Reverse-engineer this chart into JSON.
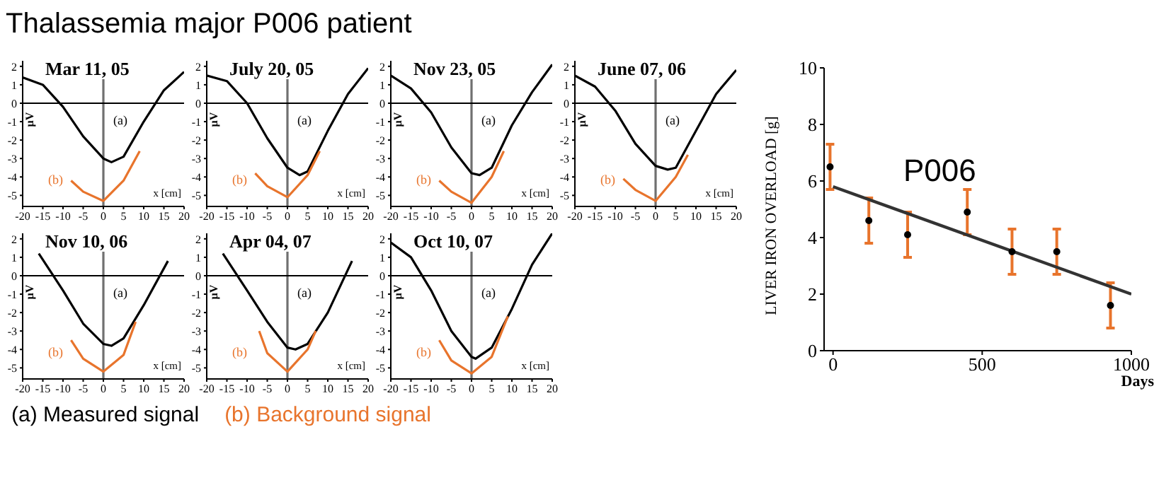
{
  "chart_data": [
    {
      "type": "line",
      "title": "Thalassemia major P006 patient",
      "subtitle": "Mar 11, 05",
      "xlabel": "x [cm]",
      "ylabel": "µV",
      "xlim": [
        -20,
        20
      ],
      "xticks": [
        -20,
        -15,
        -10,
        -5,
        0,
        5,
        10,
        15,
        20
      ],
      "ylim": [
        -5.6,
        2.3
      ],
      "yticks": [
        -5,
        -4,
        -3,
        -2,
        -1,
        0,
        1,
        2
      ],
      "ref_lines": [
        {
          "axis": "x",
          "value": 0
        },
        {
          "axis": "y",
          "value": 0
        }
      ],
      "annotations": [
        "(a)",
        "(b)",
        "(a) Measured signal",
        "(b) Background signal"
      ],
      "series": [
        {
          "color": "#000000",
          "x": [
            -20,
            -15,
            -10,
            -5,
            0,
            2,
            5,
            10,
            15,
            20
          ],
          "values": [
            1.4,
            1.0,
            -0.2,
            -1.8,
            -3.0,
            -3.2,
            -2.9,
            -1.0,
            0.7,
            1.7
          ]
        },
        {
          "color": "#e8742c",
          "x": [
            -8,
            -5,
            0,
            5,
            9
          ],
          "values": [
            -4.2,
            -4.8,
            -5.3,
            -4.2,
            -2.6
          ]
        }
      ]
    },
    {
      "type": "line",
      "subtitle": "July 20, 05",
      "xlabel": "x [cm]",
      "ylabel": "µV",
      "xlim": [
        -20,
        20
      ],
      "xticks": [
        -20,
        -15,
        -10,
        -5,
        0,
        5,
        10,
        15,
        20
      ],
      "ylim": [
        -5.6,
        2.3
      ],
      "yticks": [
        -5,
        -4,
        -3,
        -2,
        -1,
        0,
        1,
        2
      ],
      "ref_lines": [
        {
          "axis": "x",
          "value": 0
        },
        {
          "axis": "y",
          "value": 0
        }
      ],
      "annotations": [
        "(a)",
        "(b)"
      ],
      "series": [
        {
          "color": "#000000",
          "x": [
            -20,
            -15,
            -10,
            -5,
            0,
            3,
            5,
            10,
            15,
            20
          ],
          "values": [
            1.5,
            1.2,
            0,
            -1.9,
            -3.5,
            -3.9,
            -3.7,
            -1.5,
            0.5,
            1.9
          ]
        },
        {
          "color": "#e8742c",
          "x": [
            -8,
            -5,
            0,
            5,
            8
          ],
          "values": [
            -3.8,
            -4.5,
            -5.1,
            -3.9,
            -2.6
          ]
        }
      ]
    },
    {
      "type": "line",
      "subtitle": "Nov 23, 05",
      "xlabel": "x [cm]",
      "ylabel": "µV",
      "xlim": [
        -20,
        20
      ],
      "xticks": [
        -20,
        -15,
        -10,
        -5,
        0,
        5,
        10,
        15,
        20
      ],
      "ylim": [
        -5.6,
        2.3
      ],
      "yticks": [
        -5,
        -4,
        -3,
        -2,
        -1,
        0,
        1,
        2
      ],
      "ref_lines": [
        {
          "axis": "x",
          "value": 0
        },
        {
          "axis": "y",
          "value": 0
        }
      ],
      "annotations": [
        "(a)",
        "(b)"
      ],
      "series": [
        {
          "color": "#000000",
          "x": [
            -20,
            -15,
            -10,
            -5,
            0,
            2,
            5,
            10,
            15,
            20
          ],
          "values": [
            1.5,
            0.8,
            -0.5,
            -2.4,
            -3.8,
            -3.9,
            -3.5,
            -1.2,
            0.6,
            2.1
          ]
        },
        {
          "color": "#e8742c",
          "x": [
            -8,
            -5,
            0,
            5,
            8
          ],
          "values": [
            -4.2,
            -4.8,
            -5.4,
            -4.0,
            -2.6
          ]
        }
      ]
    },
    {
      "type": "line",
      "subtitle": "June 07, 06",
      "xlabel": "x [cm]",
      "ylabel": "µV",
      "xlim": [
        -20,
        20
      ],
      "xticks": [
        -20,
        -15,
        -10,
        -5,
        0,
        5,
        10,
        15,
        20
      ],
      "ylim": [
        -5.6,
        2.3
      ],
      "yticks": [
        -5,
        -4,
        -3,
        -2,
        -1,
        0,
        1,
        2
      ],
      "ref_lines": [
        {
          "axis": "x",
          "value": 0
        },
        {
          "axis": "y",
          "value": 0
        }
      ],
      "annotations": [
        "(a)",
        "(b)"
      ],
      "series": [
        {
          "color": "#000000",
          "x": [
            -20,
            -15,
            -10,
            -5,
            0,
            3,
            5,
            10,
            15,
            20
          ],
          "values": [
            1.5,
            0.9,
            -0.4,
            -2.2,
            -3.4,
            -3.6,
            -3.5,
            -1.5,
            0.5,
            1.8
          ]
        },
        {
          "color": "#e8742c",
          "x": [
            -8,
            -5,
            0,
            5,
            8
          ],
          "values": [
            -4.1,
            -4.7,
            -5.3,
            -4.0,
            -2.8
          ]
        }
      ]
    },
    {
      "type": "line",
      "subtitle": "Nov 10, 06",
      "xlabel": "x [cm]",
      "ylabel": "µV",
      "xlim": [
        -20,
        20
      ],
      "xticks": [
        -20,
        -15,
        -10,
        -5,
        0,
        5,
        10,
        15,
        20
      ],
      "ylim": [
        -5.6,
        2.3
      ],
      "yticks": [
        -5,
        -4,
        -3,
        -2,
        -1,
        0,
        1,
        2
      ],
      "ref_lines": [
        {
          "axis": "x",
          "value": 0
        },
        {
          "axis": "y",
          "value": 0
        }
      ],
      "annotations": [
        "(a)",
        "(b)"
      ],
      "series": [
        {
          "color": "#000000",
          "x": [
            -16,
            -10,
            -5,
            0,
            2,
            5,
            10,
            16
          ],
          "values": [
            1.2,
            -0.8,
            -2.6,
            -3.7,
            -3.8,
            -3.4,
            -1.6,
            0.8
          ]
        },
        {
          "color": "#e8742c",
          "x": [
            -8,
            -5,
            0,
            5,
            8
          ],
          "values": [
            -3.5,
            -4.5,
            -5.2,
            -4.3,
            -2.5
          ]
        }
      ]
    },
    {
      "type": "line",
      "subtitle": "Apr 04, 07",
      "xlabel": "x [cm]",
      "ylabel": "µV",
      "xlim": [
        -20,
        20
      ],
      "xticks": [
        -20,
        -15,
        -10,
        -5,
        0,
        5,
        10,
        15,
        20
      ],
      "ylim": [
        -5.6,
        2.3
      ],
      "yticks": [
        -5,
        -4,
        -3,
        -2,
        -1,
        0,
        1,
        2
      ],
      "ref_lines": [
        {
          "axis": "x",
          "value": 0
        },
        {
          "axis": "y",
          "value": 0
        }
      ],
      "annotations": [
        "(a)",
        "(b)"
      ],
      "series": [
        {
          "color": "#000000",
          "x": [
            -16,
            -10,
            -5,
            0,
            2,
            5,
            10,
            16
          ],
          "values": [
            1.2,
            -0.8,
            -2.5,
            -3.9,
            -4.0,
            -3.7,
            -2.0,
            0.8
          ]
        },
        {
          "color": "#e8742c",
          "x": [
            -7,
            -5,
            0,
            5,
            7
          ],
          "values": [
            -3.0,
            -4.2,
            -5.2,
            -4.0,
            -3.0
          ]
        }
      ]
    },
    {
      "type": "line",
      "subtitle": "Oct 10, 07",
      "xlabel": "x [cm]",
      "ylabel": "µV",
      "xlim": [
        -20,
        20
      ],
      "xticks": [
        -20,
        -15,
        -10,
        -5,
        0,
        5,
        10,
        15,
        20
      ],
      "ylim": [
        -5.6,
        2.3
      ],
      "yticks": [
        -5,
        -4,
        -3,
        -2,
        -1,
        0,
        1,
        2
      ],
      "ref_lines": [
        {
          "axis": "x",
          "value": 0
        },
        {
          "axis": "y",
          "value": 0
        }
      ],
      "annotations": [
        "(a)",
        "(b)"
      ],
      "series": [
        {
          "color": "#000000",
          "x": [
            -20,
            -15,
            -10,
            -5,
            0,
            1,
            5,
            10,
            15,
            20
          ],
          "values": [
            1.8,
            1.0,
            -0.8,
            -3.0,
            -4.4,
            -4.5,
            -3.9,
            -1.8,
            0.6,
            2.3
          ]
        },
        {
          "color": "#e8742c",
          "x": [
            -8,
            -5,
            0,
            5,
            9
          ],
          "values": [
            -3.5,
            -4.6,
            -5.3,
            -4.4,
            -2.2
          ]
        }
      ]
    },
    {
      "type": "scatter",
      "xlabel": "Days",
      "ylabel": "LIVER IRON OVERLOAD [g]",
      "xlim": [
        -30,
        1000
      ],
      "xticks": [
        0,
        500,
        1000
      ],
      "ylim": [
        0,
        10
      ],
      "yticks": [
        0,
        2,
        4,
        6,
        8,
        10
      ],
      "annotations": [
        "P006"
      ],
      "series": [
        {
          "type": "scatter",
          "color": "#000000",
          "x": [
            -10,
            120,
            250,
            450,
            600,
            750,
            930
          ],
          "values": [
            6.5,
            4.6,
            4.1,
            4.9,
            3.5,
            3.5,
            1.6
          ],
          "errors": [
            0.8,
            0.8,
            0.8,
            0.8,
            0.8,
            0.8,
            0.8
          ]
        },
        {
          "type": "line",
          "color": "#333333",
          "x": [
            0,
            1000
          ],
          "values": [
            5.8,
            2.0
          ]
        }
      ]
    }
  ]
}
